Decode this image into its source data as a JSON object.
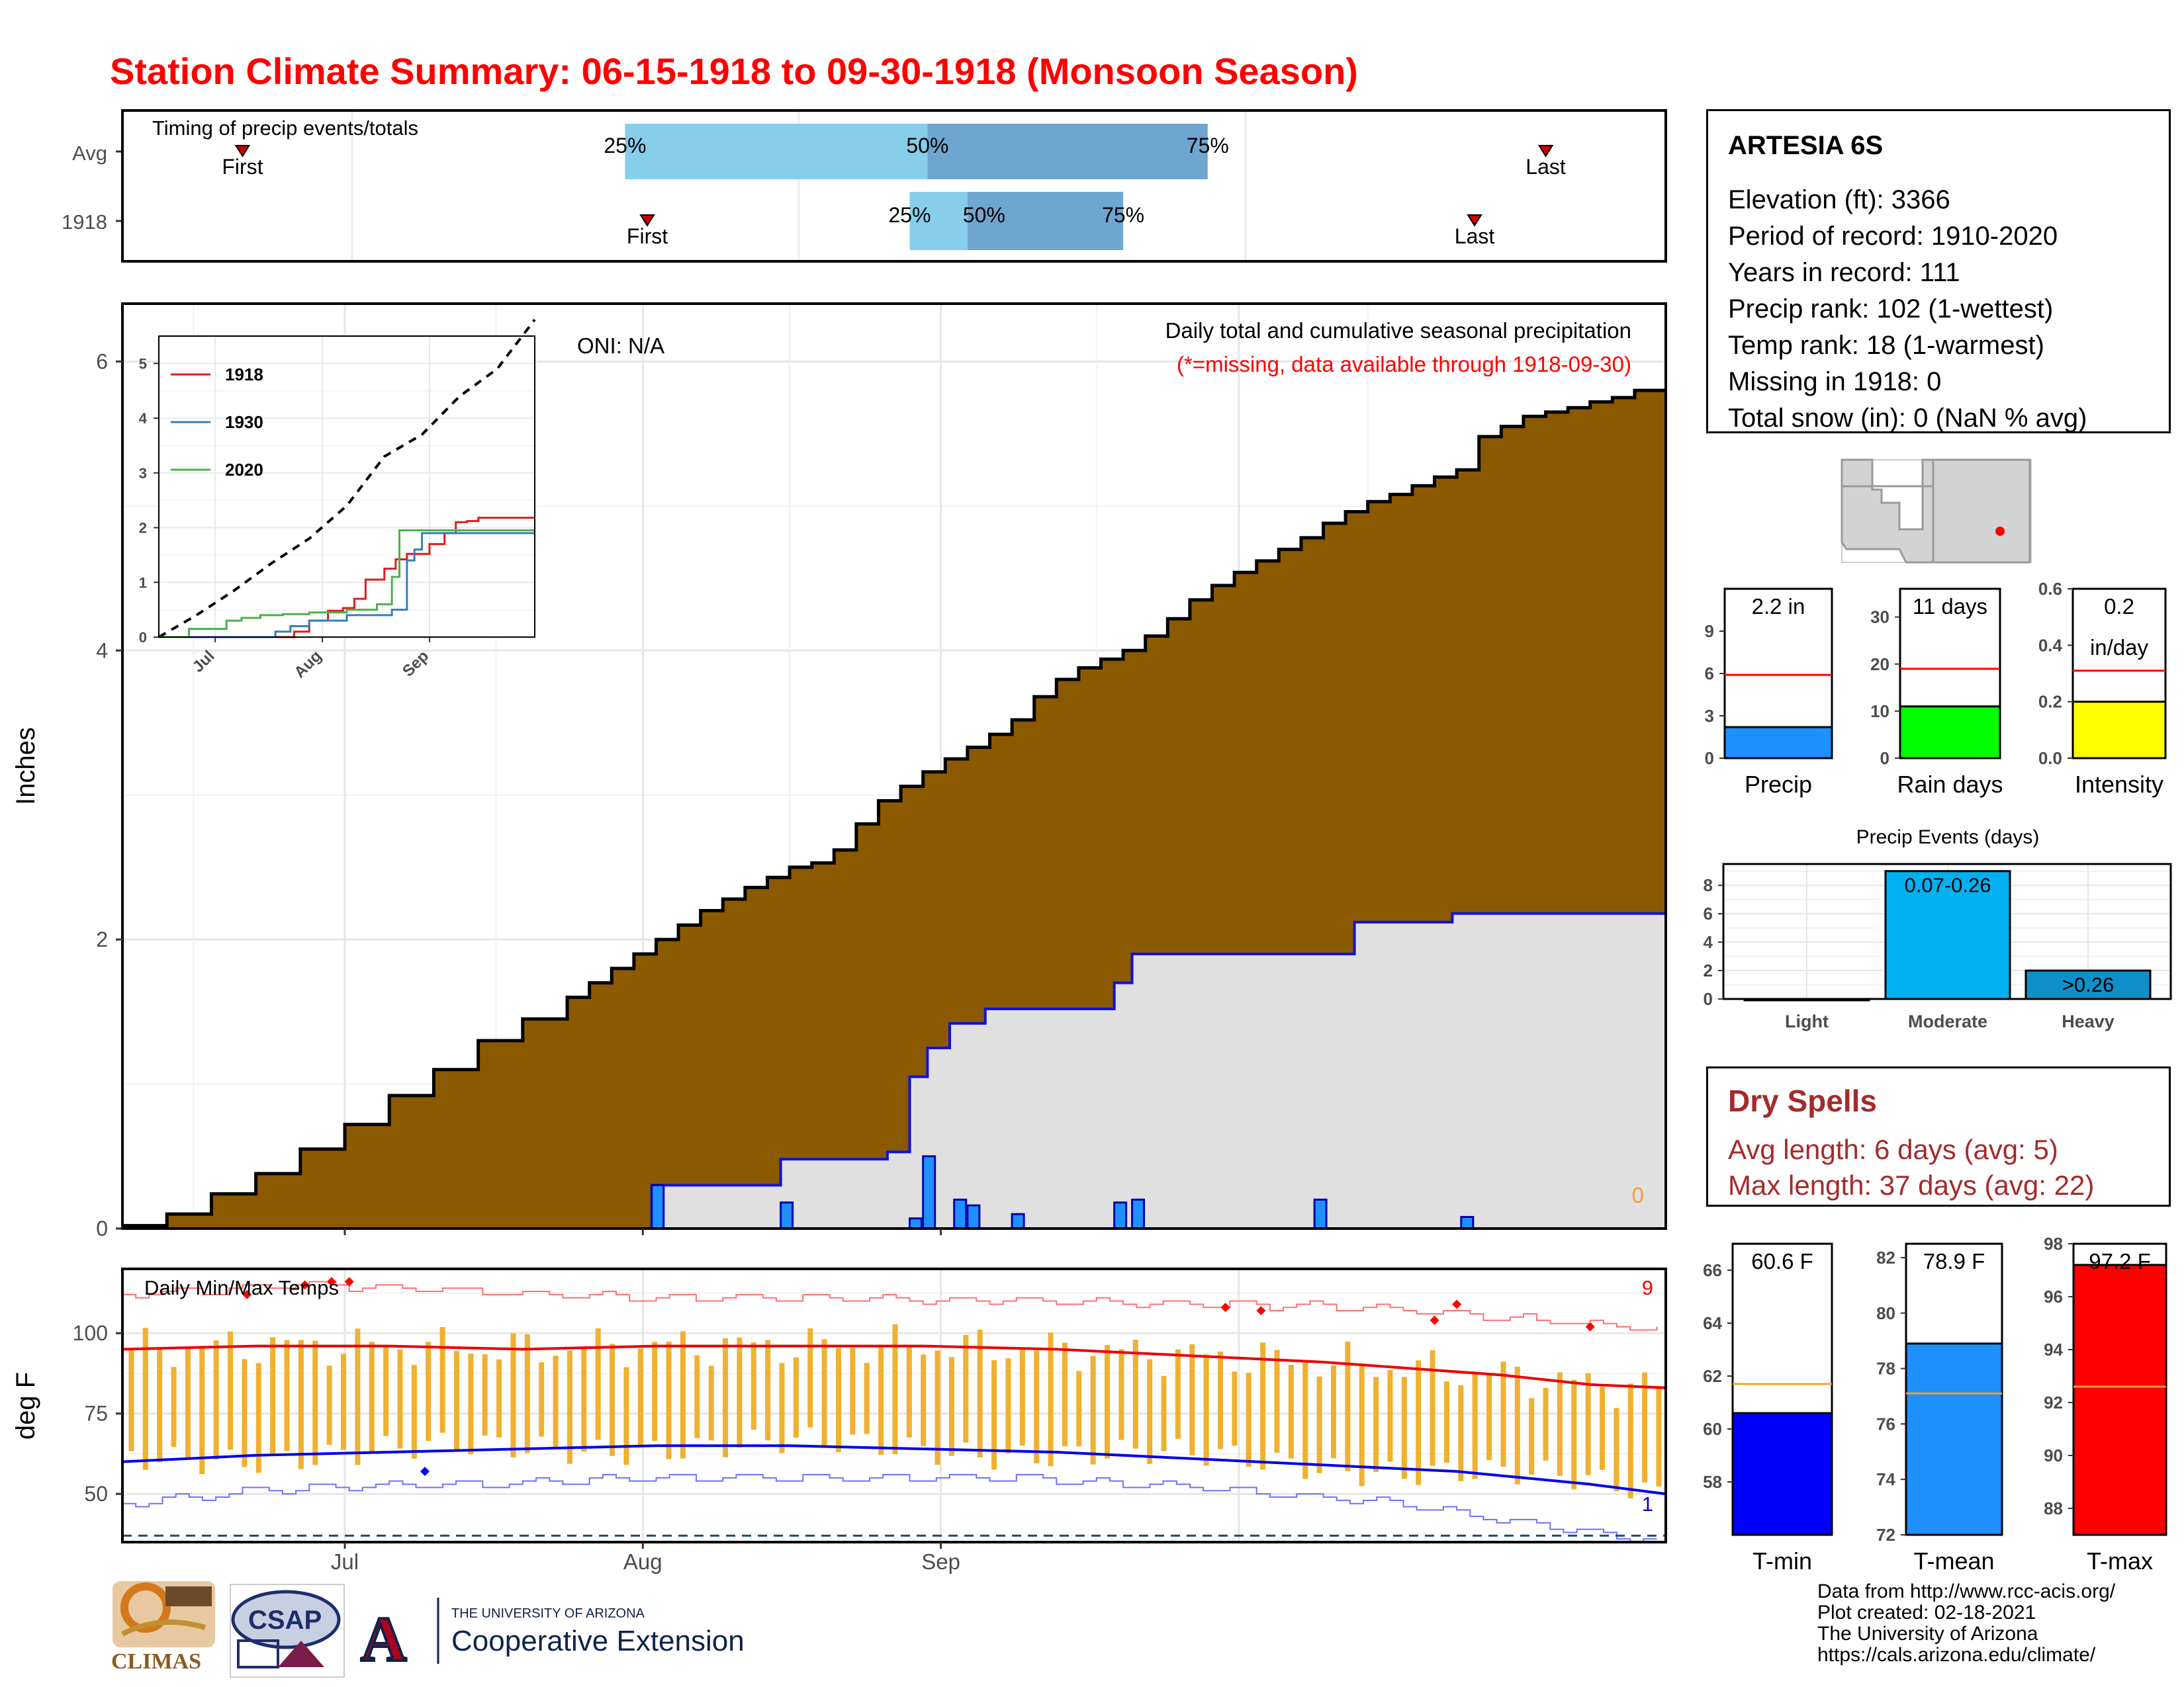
{
  "title": "Station Climate Summary: 06-15-1918 to 09-30-1918 (Monsoon Season)",
  "timing_panel": {
    "label": "Timing of precip events/totals",
    "rows": [
      {
        "name": "Avg",
        "first_day": 27,
        "q25_day": 113,
        "q50_day": 181,
        "q75_day": 244,
        "last_day": 320
      },
      {
        "name": "1918",
        "first_day": 118,
        "q25_day": 177,
        "q50_day": 190,
        "q75_day": 225,
        "last_day": 304
      }
    ],
    "first_label": "First",
    "last_label": "Last",
    "q25_label": "25%",
    "q50_label": "50%",
    "q75_label": "75%"
  },
  "precip_panel": {
    "ylabel": "Inches",
    "ylim": [
      0,
      6.4
    ],
    "yticks": [
      "0",
      "2",
      "4",
      "6"
    ],
    "oni_label": "ONI: N/A",
    "note": "Daily total and cumulative seasonal precipitation",
    "missing_note": "(*=missing, data available through 1918-09-30)",
    "missing_count": "0",
    "colors": {
      "avg_fill": "#8b5a00",
      "obs_fill": "#e0e0e0",
      "obs_line": "#1010e0",
      "daily_bar": "#1e90ff"
    }
  },
  "chart_data": [
    {
      "type": "area",
      "name": "cumulative precipitation",
      "x_unit": "day of season (0 = Jun 15)",
      "avg_cumulative": {
        "x": [
          0,
          10,
          20,
          30,
          40,
          50,
          60,
          70,
          80,
          90,
          100,
          105,
          110,
          115,
          120,
          125,
          130,
          135,
          140,
          145,
          150,
          155,
          160,
          165,
          170,
          175,
          180,
          185,
          190,
          195,
          200,
          205,
          210,
          215,
          220,
          225,
          230,
          235,
          240,
          245,
          250,
          255,
          260,
          265,
          270,
          275,
          280,
          285,
          290,
          295,
          300,
          305,
          310,
          315,
          320,
          325,
          330,
          335,
          340,
          347
        ],
        "y": [
          0.02,
          0.1,
          0.24,
          0.38,
          0.55,
          0.72,
          0.92,
          1.1,
          1.3,
          1.45,
          1.6,
          1.7,
          1.8,
          1.9,
          2.0,
          2.1,
          2.2,
          2.28,
          2.36,
          2.43,
          2.5,
          2.53,
          2.62,
          2.8,
          2.96,
          3.06,
          3.16,
          3.25,
          3.33,
          3.42,
          3.52,
          3.68,
          3.8,
          3.88,
          3.94,
          4.0,
          4.1,
          4.22,
          4.35,
          4.45,
          4.54,
          4.62,
          4.7,
          4.78,
          4.88,
          4.96,
          5.03,
          5.08,
          5.14,
          5.2,
          5.25,
          5.48,
          5.55,
          5.62,
          5.65,
          5.68,
          5.72,
          5.75,
          5.8,
          5.8
        ]
      },
      "obs_cumulative": {
        "x": [
          0,
          119,
          148,
          172,
          177,
          181,
          186,
          194,
          223,
          227,
          277,
          299,
          347
        ],
        "y": [
          0,
          0.3,
          0.48,
          0.53,
          1.05,
          1.25,
          1.42,
          1.52,
          1.7,
          1.9,
          2.12,
          2.18,
          2.18
        ]
      },
      "daily_bars": {
        "x": [
          119,
          148,
          177,
          180,
          187,
          190,
          200,
          223,
          227,
          268,
          301
        ],
        "y": [
          0.3,
          0.18,
          0.07,
          0.5,
          0.2,
          0.16,
          0.1,
          0.18,
          0.2,
          0.2,
          0.08
        ]
      }
    },
    {
      "type": "line",
      "name": "inset cumulative comparison",
      "x_ticks": [
        "Jul",
        "Aug",
        "Sep"
      ],
      "ylim": [
        0,
        5.5
      ],
      "yticks": [
        "0",
        "1",
        "2",
        "3",
        "4",
        "5"
      ],
      "series": [
        {
          "name": "1918",
          "color": "#e41a1c",
          "x": [
            0,
            20,
            36,
            40,
            45,
            49,
            52,
            55,
            60,
            63,
            66,
            69,
            72,
            76,
            79,
            82,
            85,
            88,
            100
          ],
          "y": [
            0,
            0,
            0.1,
            0.3,
            0.48,
            0.53,
            0.7,
            1.05,
            1.25,
            1.42,
            1.52,
            1.52,
            1.7,
            1.9,
            2.1,
            2.12,
            2.18,
            2.18,
            2.18
          ]
        },
        {
          "name": "1930",
          "color": "#377eb8",
          "x": [
            0,
            28,
            31,
            35,
            40,
            50,
            62,
            66,
            68,
            70,
            100
          ],
          "y": [
            0,
            0,
            0.1,
            0.2,
            0.3,
            0.4,
            0.5,
            1.4,
            1.6,
            1.9,
            1.9
          ]
        },
        {
          "name": "2020",
          "color": "#4daf4a",
          "x": [
            0,
            6,
            8,
            18,
            22,
            27,
            33,
            40,
            50,
            58,
            62,
            64,
            70,
            100
          ],
          "y": [
            0,
            0,
            0.15,
            0.3,
            0.35,
            0.4,
            0.42,
            0.45,
            0.5,
            0.6,
            1.1,
            1.95,
            1.95,
            1.95
          ]
        }
      ],
      "avg_series": {
        "name": "avg",
        "x": [
          0,
          10,
          20,
          30,
          40,
          50,
          60,
          70,
          80,
          90,
          100
        ],
        "y": [
          0,
          0.4,
          0.85,
          1.35,
          1.8,
          2.4,
          3.3,
          3.7,
          4.4,
          4.9,
          5.8
        ]
      }
    },
    {
      "type": "bar",
      "name": "daily min/max temperatures",
      "ylim": [
        35,
        120
      ],
      "yticks": [
        "50",
        "75",
        "100"
      ],
      "ylabel": "deg F",
      "x_ticks": [
        "Jul",
        "Aug",
        "Sep"
      ],
      "tmax_avg": {
        "x": [
          0,
          30,
          60,
          90,
          120,
          150,
          180,
          210,
          240,
          270,
          290,
          310,
          330,
          347
        ],
        "y": [
          95,
          96,
          96,
          95,
          96,
          96,
          96,
          95,
          93,
          91,
          89,
          87,
          84,
          83
        ]
      },
      "tmin_avg": {
        "x": [
          0,
          30,
          60,
          90,
          120,
          150,
          180,
          210,
          240,
          270,
          300,
          330,
          347
        ],
        "y": [
          60,
          62,
          63,
          64,
          65,
          65,
          64,
          63,
          61,
          59,
          57,
          53,
          50
        ]
      },
      "record_high": {
        "x": [
          0,
          40,
          80,
          120,
          160,
          200,
          240,
          280,
          320,
          347
        ],
        "y": [
          112,
          115,
          113,
          111,
          111,
          110,
          109,
          108,
          104,
          101
        ]
      },
      "record_low": {
        "x": [
          0,
          40,
          80,
          120,
          160,
          200,
          240,
          280,
          320,
          347
        ],
        "y": [
          47,
          52,
          53,
          55,
          55,
          55,
          52,
          48,
          40,
          35
        ]
      },
      "cold_line": 37,
      "record_high_count": "9",
      "record_low_count": "1",
      "label": "Daily Min/Max Temps"
    },
    {
      "type": "bar",
      "name": "season totals vs average",
      "panels": [
        {
          "label": "Precip",
          "value_label": "2.2 in",
          "value": 2.2,
          "avg": 5.9,
          "ylim": [
            0,
            12
          ],
          "yticks": [
            "0",
            "3",
            "6",
            "9"
          ],
          "color": "#1e90ff"
        },
        {
          "label": "Rain days",
          "value_label": "11 days",
          "value": 11,
          "avg": 19,
          "ylim": [
            0,
            36
          ],
          "yticks": [
            "0",
            "10",
            "20",
            "30"
          ],
          "color": "#00ff00"
        },
        {
          "label": "Intensity",
          "value_label": "0.2 in/day",
          "value": 0.2,
          "avg": 0.31,
          "ylim": [
            0,
            0.6
          ],
          "yticks": [
            "0.0",
            "0.2",
            "0.4",
            "0.6"
          ],
          "color": "#ffff00"
        }
      ]
    },
    {
      "type": "bar",
      "name": "Precip Events (days)",
      "title": "Precip Events (days)",
      "categories": [
        "Light",
        "Moderate",
        "Heavy"
      ],
      "values": [
        0,
        9,
        2
      ],
      "bar_labels": [
        "",
        "0.07-0.26",
        ">0.26"
      ],
      "ylim": [
        0,
        9.5
      ],
      "yticks": [
        "0",
        "2",
        "4",
        "6",
        "8"
      ],
      "colors": [
        "#87ceeb",
        "#00b0f0",
        "#1090c8"
      ]
    },
    {
      "type": "bar",
      "name": "season temperatures vs average",
      "panels": [
        {
          "label": "T-min",
          "value_label": "60.6 F",
          "value": 60.6,
          "avg": 61.7,
          "ylim": [
            56,
            67
          ],
          "yticks": [
            "58",
            "60",
            "62",
            "64",
            "66"
          ],
          "color": "#0000ff"
        },
        {
          "label": "T-mean",
          "value_label": "78.9 F",
          "value": 78.9,
          "avg": 77.1,
          "ylim": [
            72,
            82.5
          ],
          "yticks": [
            "72",
            "74",
            "76",
            "78",
            "80",
            "82"
          ],
          "color": "#1e90ff"
        },
        {
          "label": "T-max",
          "value_label": "97.2 F",
          "value": 97.2,
          "avg": 92.6,
          "ylim": [
            87,
            98
          ],
          "yticks": [
            "88",
            "90",
            "92",
            "94",
            "96",
            "98"
          ],
          "color": "#ff0000"
        }
      ]
    }
  ],
  "station": {
    "name": "ARTESIA 6S",
    "lines": [
      "Elevation (ft): 3366",
      "Period of record: 1910-2020",
      "Years in record: 111",
      "Precip rank: 102 (1-wettest)",
      "Temp rank: 18 (1-warmest)",
      "Missing in 1918: 0",
      "Total snow (in): 0 (NaN % avg)"
    ]
  },
  "dry_spells": {
    "title": "Dry Spells",
    "avg_line": "Avg length: 6 days (avg: 5)",
    "max_line": "Max length: 37 days (avg: 22)"
  },
  "month_ticks": [
    "Jul",
    "Aug",
    "Sep"
  ],
  "credits": {
    "line1": "Data from http://www.rcc-acis.org/",
    "line2": "Plot created: 02-18-2021",
    "line3": "The University of Arizona",
    "line4": "https://cals.arizona.edu/climate/"
  },
  "logos": {
    "climas": "CLIMAS",
    "csap": "CSAP",
    "ua_small": "THE UNIVERSITY OF ARIZONA",
    "ua_big": "Cooperative Extension"
  }
}
